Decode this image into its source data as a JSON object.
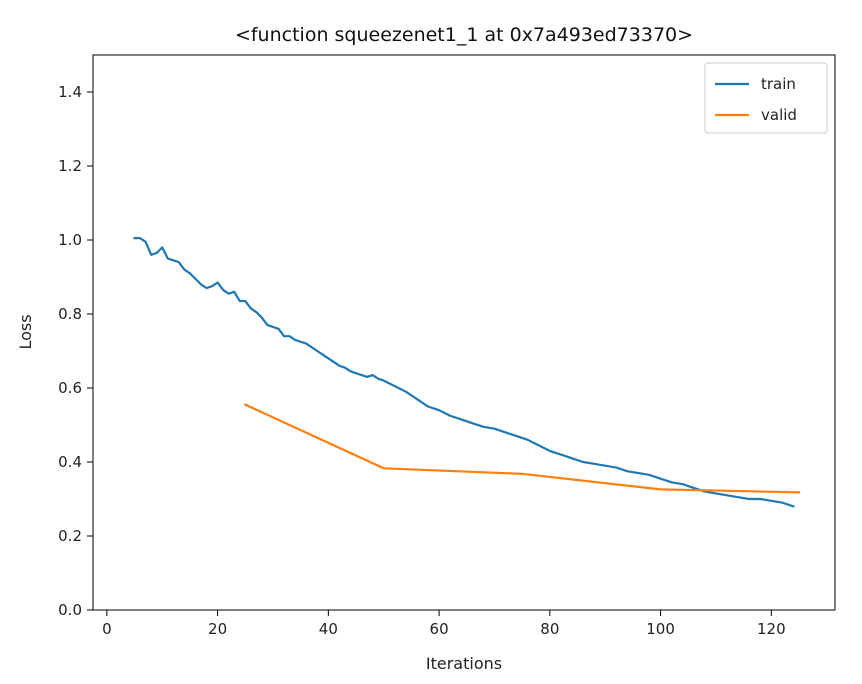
{
  "chart_data": {
    "type": "line",
    "title": "<function squeezenet1_1 at 0x7a493ed73370>",
    "xlabel": "Iterations",
    "ylabel": "Loss",
    "xlim": [
      -2.5,
      131.5
    ],
    "ylim": [
      0.0,
      1.5
    ],
    "xticks": [
      0,
      20,
      40,
      60,
      80,
      100,
      120
    ],
    "yticks": [
      0.0,
      0.2,
      0.4,
      0.6,
      0.8,
      1.0,
      1.2,
      1.4
    ],
    "grid": false,
    "legend_position": "top-right",
    "series": [
      {
        "name": "train",
        "color": "#1f77b4",
        "x": [
          5,
          6,
          7,
          8,
          9,
          10,
          11,
          12,
          13,
          14,
          15,
          16,
          17,
          18,
          19,
          20,
          21,
          22,
          23,
          24,
          25,
          26,
          27,
          28,
          29,
          30,
          31,
          32,
          33,
          34,
          35,
          36,
          37,
          38,
          39,
          40,
          41,
          42,
          43,
          44,
          45,
          46,
          47,
          48,
          49,
          50,
          52,
          54,
          56,
          58,
          60,
          62,
          64,
          66,
          68,
          70,
          72,
          74,
          76,
          78,
          80,
          82,
          84,
          86,
          88,
          90,
          92,
          94,
          96,
          98,
          100,
          102,
          104,
          106,
          108,
          110,
          112,
          114,
          116,
          118,
          120,
          122,
          124
        ],
        "y": [
          1.005,
          1.005,
          0.995,
          0.96,
          0.965,
          0.98,
          0.95,
          0.945,
          0.94,
          0.92,
          0.91,
          0.895,
          0.88,
          0.87,
          0.875,
          0.885,
          0.865,
          0.855,
          0.86,
          0.835,
          0.835,
          0.815,
          0.805,
          0.79,
          0.77,
          0.765,
          0.76,
          0.74,
          0.74,
          0.73,
          0.725,
          0.72,
          0.71,
          0.7,
          0.69,
          0.68,
          0.67,
          0.66,
          0.655,
          0.645,
          0.64,
          0.635,
          0.63,
          0.635,
          0.625,
          0.62,
          0.605,
          0.59,
          0.57,
          0.55,
          0.54,
          0.525,
          0.515,
          0.505,
          0.495,
          0.49,
          0.48,
          0.47,
          0.46,
          0.445,
          0.43,
          0.42,
          0.41,
          0.4,
          0.395,
          0.39,
          0.385,
          0.375,
          0.37,
          0.365,
          0.355,
          0.345,
          0.34,
          0.33,
          0.32,
          0.315,
          0.31,
          0.305,
          0.3,
          0.3,
          0.295,
          0.29,
          0.28
        ]
      },
      {
        "name": "valid",
        "color": "#ff7f0e",
        "x": [
          25,
          50,
          75,
          100,
          125
        ],
        "y": [
          0.555,
          0.383,
          0.368,
          0.326,
          0.318
        ]
      }
    ]
  }
}
